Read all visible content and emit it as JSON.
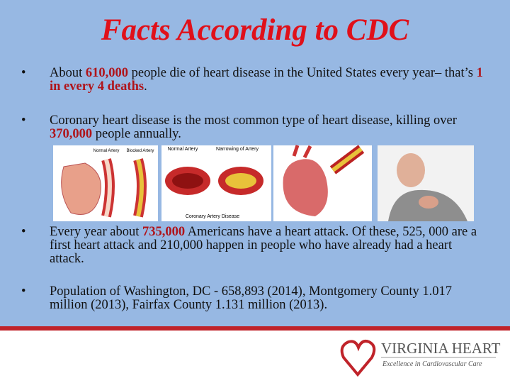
{
  "title": "Facts According to CDC",
  "bullets": [
    {
      "runs": [
        {
          "text": "About "
        },
        {
          "text": "610,000",
          "em": true
        },
        {
          "text": " people die of heart disease in the United States every year– that’s "
        },
        {
          "text": "1 in every 4 deaths",
          "em": true
        },
        {
          "text": "."
        }
      ]
    },
    {
      "runs": [
        {
          "text": "Coronary heart disease is the most common type of heart disease, killing over "
        },
        {
          "text": "370,000",
          "em": true
        },
        {
          "text": " people annually."
        }
      ]
    },
    {
      "runs": [
        {
          "text": "Every year about "
        },
        {
          "text": "735,000",
          "em": true
        },
        {
          "text": " Americans have a heart attack. Of these, 525, 000 are a first heart attack and 210,000 happen in people who have already had a heart attack."
        }
      ]
    },
    {
      "runs": [
        {
          "text": "Population of  Washington, DC - 658,893 (2014),  Montgomery County 1.017 million (2013),  Fairfax County 1.131 million (2013)."
        }
      ]
    }
  ],
  "images": {
    "artery_labels": [
      "Normal Artery",
      "Blocked Artery"
    ],
    "disease_labels": [
      "Normal Artery",
      "Narrowing of Artery",
      "Coronary Artery Disease"
    ]
  },
  "logo": {
    "name": "VIRGINIA HEART",
    "tagline": "Excellence in Cardiovascular Care"
  }
}
